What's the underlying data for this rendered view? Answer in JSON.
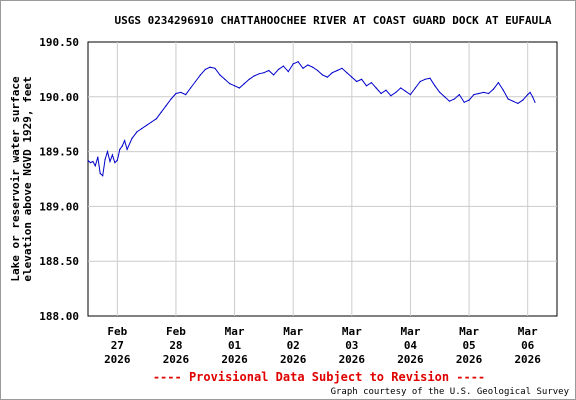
{
  "chart_data": {
    "type": "line",
    "title": "USGS 0234296910 CHATTAHOOCHEE RIVER AT COAST GUARD DOCK AT EUFAULA",
    "ylabel": [
      "Lake or reservoir water surface",
      "elevation above NGVD 1929, feet"
    ],
    "xlabel": "",
    "ylim": [
      188.0,
      190.5
    ],
    "yticks": [
      188.0,
      188.5,
      189.0,
      189.5,
      190.0,
      190.5
    ],
    "ytick_labels": [
      "188.00",
      "188.50",
      "189.00",
      "189.50",
      "190.00",
      "190.50"
    ],
    "xlim": [
      "2026-02-26 12:00",
      "2026-03-06 12:00"
    ],
    "xticks": [
      "Feb\n27\n2026",
      "Feb\n28\n2026",
      "Mar\n01\n2026",
      "Mar\n02\n2026",
      "Mar\n03\n2026",
      "Mar\n04\n2026",
      "Mar\n05\n2026",
      "Mar\n06\n2026"
    ],
    "grid": true,
    "series_color": "#0000cc",
    "series": [
      {
        "x": [
          "2026-02-26 12:00",
          "2026-02-26 13:00",
          "2026-02-26 14:00",
          "2026-02-26 15:00",
          "2026-02-26 16:00",
          "2026-02-26 17:00",
          "2026-02-26 18:00",
          "2026-02-26 19:00",
          "2026-02-26 20:00",
          "2026-02-26 21:00",
          "2026-02-26 22:00",
          "2026-02-26 23:00",
          "2026-02-27 00:00",
          "2026-02-27 01:00",
          "2026-02-27 02:00",
          "2026-02-27 03:00",
          "2026-02-27 04:00",
          "2026-02-27 06:00",
          "2026-02-27 08:00",
          "2026-02-27 10:00",
          "2026-02-27 12:00",
          "2026-02-27 14:00",
          "2026-02-27 16:00",
          "2026-02-27 18:00",
          "2026-02-27 20:00",
          "2026-02-27 22:00",
          "2026-02-28 00:00",
          "2026-02-28 02:00",
          "2026-02-28 04:00",
          "2026-02-28 06:00",
          "2026-02-28 08:00",
          "2026-02-28 10:00",
          "2026-02-28 12:00",
          "2026-02-28 14:00",
          "2026-02-28 16:00",
          "2026-02-28 18:00",
          "2026-02-28 20:00",
          "2026-02-28 22:00",
          "2026-03-01 00:00",
          "2026-03-01 02:00",
          "2026-03-01 04:00",
          "2026-03-01 06:00",
          "2026-03-01 08:00",
          "2026-03-01 10:00",
          "2026-03-01 12:00",
          "2026-03-01 14:00",
          "2026-03-01 16:00",
          "2026-03-01 18:00",
          "2026-03-01 20:00",
          "2026-03-01 22:00",
          "2026-03-02 00:00",
          "2026-03-02 02:00",
          "2026-03-02 04:00",
          "2026-03-02 06:00",
          "2026-03-02 08:00",
          "2026-03-02 10:00",
          "2026-03-02 12:00",
          "2026-03-02 14:00",
          "2026-03-02 16:00",
          "2026-03-02 18:00",
          "2026-03-02 20:00",
          "2026-03-02 22:00",
          "2026-03-03 00:00",
          "2026-03-03 02:00",
          "2026-03-03 04:00",
          "2026-03-03 06:00",
          "2026-03-03 08:00",
          "2026-03-03 10:00",
          "2026-03-03 12:00",
          "2026-03-03 14:00",
          "2026-03-03 16:00",
          "2026-03-03 18:00",
          "2026-03-03 20:00",
          "2026-03-03 22:00",
          "2026-03-04 00:00",
          "2026-03-04 02:00",
          "2026-03-04 04:00",
          "2026-03-04 06:00",
          "2026-03-04 08:00",
          "2026-03-04 10:00",
          "2026-03-04 12:00",
          "2026-03-04 14:00",
          "2026-03-04 16:00",
          "2026-03-04 18:00",
          "2026-03-04 20:00",
          "2026-03-04 22:00",
          "2026-03-05 00:00",
          "2026-03-05 02:00",
          "2026-03-05 04:00",
          "2026-03-05 06:00",
          "2026-03-05 08:00",
          "2026-03-05 10:00",
          "2026-03-05 12:00",
          "2026-03-05 14:00",
          "2026-03-05 16:00",
          "2026-03-05 18:00",
          "2026-03-05 20:00",
          "2026-03-05 22:00",
          "2026-03-06 00:00",
          "2026-03-06 01:00",
          "2026-03-06 02:00",
          "2026-03-06 03:00"
        ],
        "values": [
          189.42,
          189.4,
          189.41,
          189.37,
          189.45,
          189.3,
          189.28,
          189.43,
          189.5,
          189.41,
          189.47,
          189.4,
          189.42,
          189.52,
          189.55,
          189.6,
          189.52,
          189.62,
          189.68,
          189.71,
          189.74,
          189.77,
          189.8,
          189.86,
          189.92,
          189.98,
          190.03,
          190.04,
          190.02,
          190.08,
          190.14,
          190.2,
          190.25,
          190.27,
          190.26,
          190.2,
          190.16,
          190.12,
          190.1,
          190.08,
          190.12,
          190.16,
          190.19,
          190.21,
          190.22,
          190.24,
          190.2,
          190.25,
          190.28,
          190.23,
          190.3,
          190.32,
          190.26,
          190.29,
          190.27,
          190.24,
          190.2,
          190.18,
          190.22,
          190.24,
          190.26,
          190.22,
          190.18,
          190.14,
          190.16,
          190.1,
          190.13,
          190.08,
          190.03,
          190.06,
          190.01,
          190.04,
          190.08,
          190.05,
          190.02,
          190.08,
          190.14,
          190.16,
          190.17,
          190.1,
          190.04,
          190.0,
          189.96,
          189.98,
          190.02,
          189.95,
          189.97,
          190.02,
          190.03,
          190.04,
          190.03,
          190.07,
          190.13,
          190.06,
          189.98,
          189.96,
          189.94,
          189.97,
          190.02,
          190.04,
          190.0,
          189.95
        ]
      }
    ]
  },
  "footer": {
    "provisional": "---- Provisional Data Subject to Revision ----",
    "credit": "Graph courtesy of the U.S. Geological Survey"
  }
}
